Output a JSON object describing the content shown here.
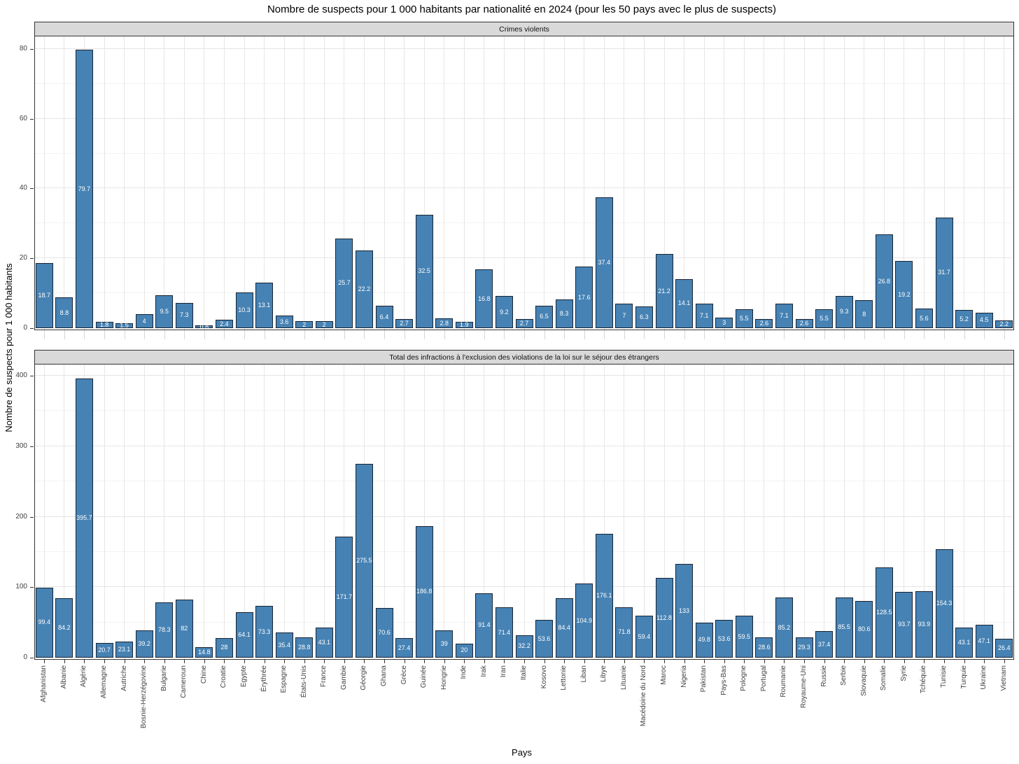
{
  "title": "Nombre de suspects pour 1 000 habitants par nationalité en 2024 (pour les 50 pays avec le plus de suspects)",
  "colors": {
    "bar_fill": "#4682B4",
    "bar_border": "#1a2433",
    "bar_label_text": "#ffffff",
    "strip_bg": "#d9d9d9",
    "panel_border": "#333333",
    "grid_major": "#e6e6e6",
    "grid_minor": "#f3f3f3",
    "axis_text": "#404040"
  },
  "chart_data": {
    "type": "bar",
    "title": "Nombre de suspects pour 1 000 habitants par nationalité en 2024 (pour les 50 pays avec le plus de suspects)",
    "xlabel": "Pays",
    "ylabel": "Nombre de suspects pour 1 000 habitants",
    "legend_position": "none",
    "grid": true,
    "bar_value_labels": true,
    "facet_layout": "rows",
    "categories": [
      "Afghanistan",
      "Albanie",
      "Algérie",
      "Allemagne",
      "Autriche",
      "Bosnie-Herzégovine",
      "Bulgarie",
      "Cameroun",
      "Chine",
      "Croatie",
      "Egypte",
      "Érythrée",
      "Espagne",
      "États-Unis",
      "France",
      "Gambie",
      "Géorgie",
      "Ghana",
      "Grèce",
      "Guinée",
      "Hongrie",
      "Inde",
      "Irak",
      "Iran",
      "Italie",
      "Kosovo",
      "Lettonie",
      "Liban",
      "Libye",
      "Lituanie",
      "Macédoine du Nord",
      "Maroc",
      "Nigeria",
      "Pakistan",
      "Pays-Bas",
      "Pologne",
      "Portugal",
      "Roumanie",
      "Royaume-Uni",
      "Russie",
      "Serbie",
      "Slovaquie",
      "Somalie",
      "Syrie",
      "Tchéquie",
      "Tunisie",
      "Turquie",
      "Ukraine",
      "Vietnam"
    ],
    "series": [
      {
        "name": "Crimes violents",
        "values": [
          18.7,
          8.8,
          79.7,
          1.8,
          1.5,
          4,
          9.5,
          7.3,
          0.8,
          2.4,
          10.3,
          13.1,
          3.6,
          2,
          2,
          25.7,
          22.2,
          6.4,
          2.7,
          32.5,
          2.8,
          1.9,
          16.8,
          9.2,
          2.7,
          6.5,
          8.3,
          17.6,
          37.4,
          7,
          6.3,
          21.2,
          14.1,
          7.1,
          3,
          5.5,
          2.6,
          7.1,
          2.6,
          5.5,
          9.3,
          8,
          26.8,
          19.2,
          5.6,
          31.7,
          5.2,
          4.5,
          2.2
        ],
        "ylim": [
          0,
          83.6
        ],
        "yticks": [
          0,
          20,
          40,
          60,
          80
        ],
        "yticks_minor": [
          10,
          30,
          50,
          70
        ]
      },
      {
        "name": "Total des infractions à l'exclusion des violations de la loi sur le séjour des étrangers",
        "values": [
          99.4,
          84.2,
          395.7,
          20.7,
          23.1,
          39.2,
          78.3,
          82,
          14.8,
          28,
          64.1,
          73.3,
          35.4,
          28.8,
          43.1,
          171.7,
          275.5,
          70.6,
          27.4,
          186.8,
          39,
          20,
          91.4,
          71.4,
          32.2,
          53.6,
          84.4,
          104.9,
          176.1,
          71.8,
          59.4,
          112.8,
          133,
          49.8,
          53.6,
          59.5,
          28.6,
          85.2,
          29.3,
          37.4,
          85.5,
          80.6,
          128.5,
          93.7,
          93.9,
          154.3,
          43.1,
          47.1,
          26.4
        ],
        "ylim": [
          0,
          416
        ],
        "yticks": [
          0,
          100,
          200,
          300,
          400
        ],
        "yticks_minor": [
          50,
          150,
          250,
          350
        ]
      }
    ]
  }
}
